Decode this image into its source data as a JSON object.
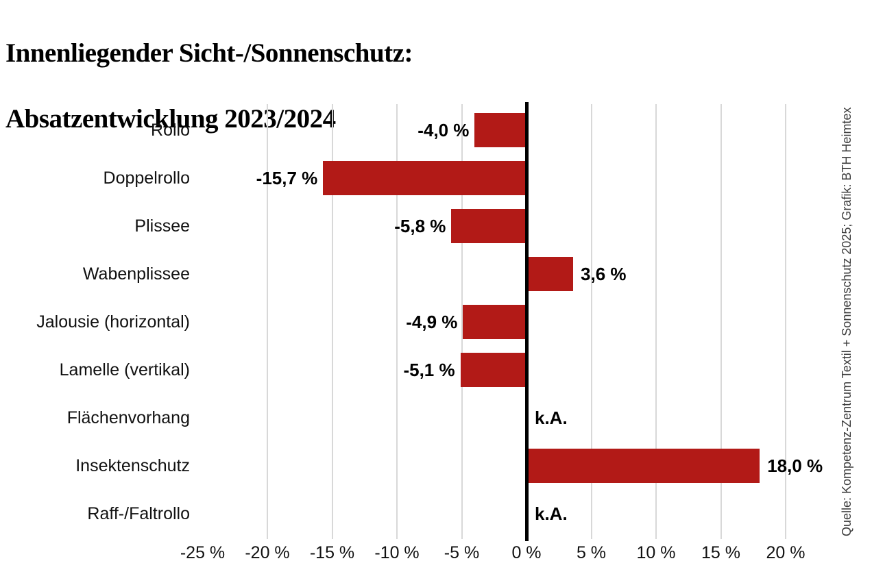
{
  "title": {
    "line1": "Innenliegender Sicht-/Sonnenschutz:",
    "line2": "Absatzentwicklung 2023/2024"
  },
  "source_credit": "Quelle: Kompetenz-Zentrum Textil + Sonnenschutz 2025; Grafik: BTH Heimtex",
  "chart_data": {
    "type": "bar",
    "orientation": "horizontal",
    "title": "Innenliegender Sicht-/Sonnenschutz: Absatzentwicklung 2023/2024",
    "xlabel": "",
    "ylabel": "",
    "unit": "%",
    "xlim": [
      -25,
      22
    ],
    "grid": true,
    "legend": false,
    "categories": [
      "Rollo",
      "Doppelrollo",
      "Plissee",
      "Wabenplissee",
      "Jalousie (horizontal)",
      "Lamelle (vertikal)",
      "Flächenvorhang",
      "Insektenschutz",
      "Raff-/Faltrollo"
    ],
    "values": [
      -4.0,
      -15.7,
      -5.8,
      3.6,
      -4.9,
      -5.1,
      null,
      18.0,
      null
    ],
    "value_labels": [
      "-4,0 %",
      "-15,7 %",
      "-5,8 %",
      "3,6 %",
      "-4,9 %",
      "-5,1 %",
      "k.A.",
      "18,0 %",
      "k.A."
    ],
    "no_data_label": "k.A.",
    "x_ticks": [
      {
        "value": -25,
        "label": "-25 %",
        "gridline": false
      },
      {
        "value": -20,
        "label": "-20 %",
        "gridline": true
      },
      {
        "value": -15,
        "label": "-15 %",
        "gridline": true
      },
      {
        "value": -10,
        "label": "-10 %",
        "gridline": true
      },
      {
        "value": -5,
        "label": "-5 %",
        "gridline": true
      },
      {
        "value": 0,
        "label": "0 %",
        "gridline": false
      },
      {
        "value": 5,
        "label": "5 %",
        "gridline": true
      },
      {
        "value": 10,
        "label": "10 %",
        "gridline": true
      },
      {
        "value": 15,
        "label": "15 %",
        "gridline": true
      },
      {
        "value": 20,
        "label": "20 %",
        "gridline": true
      }
    ],
    "colors": {
      "bar": "#b21a17",
      "gridline": "#d8d8d8",
      "zero_axis": "#000000",
      "text": "#111111",
      "source_text": "#3c3c3c"
    }
  }
}
